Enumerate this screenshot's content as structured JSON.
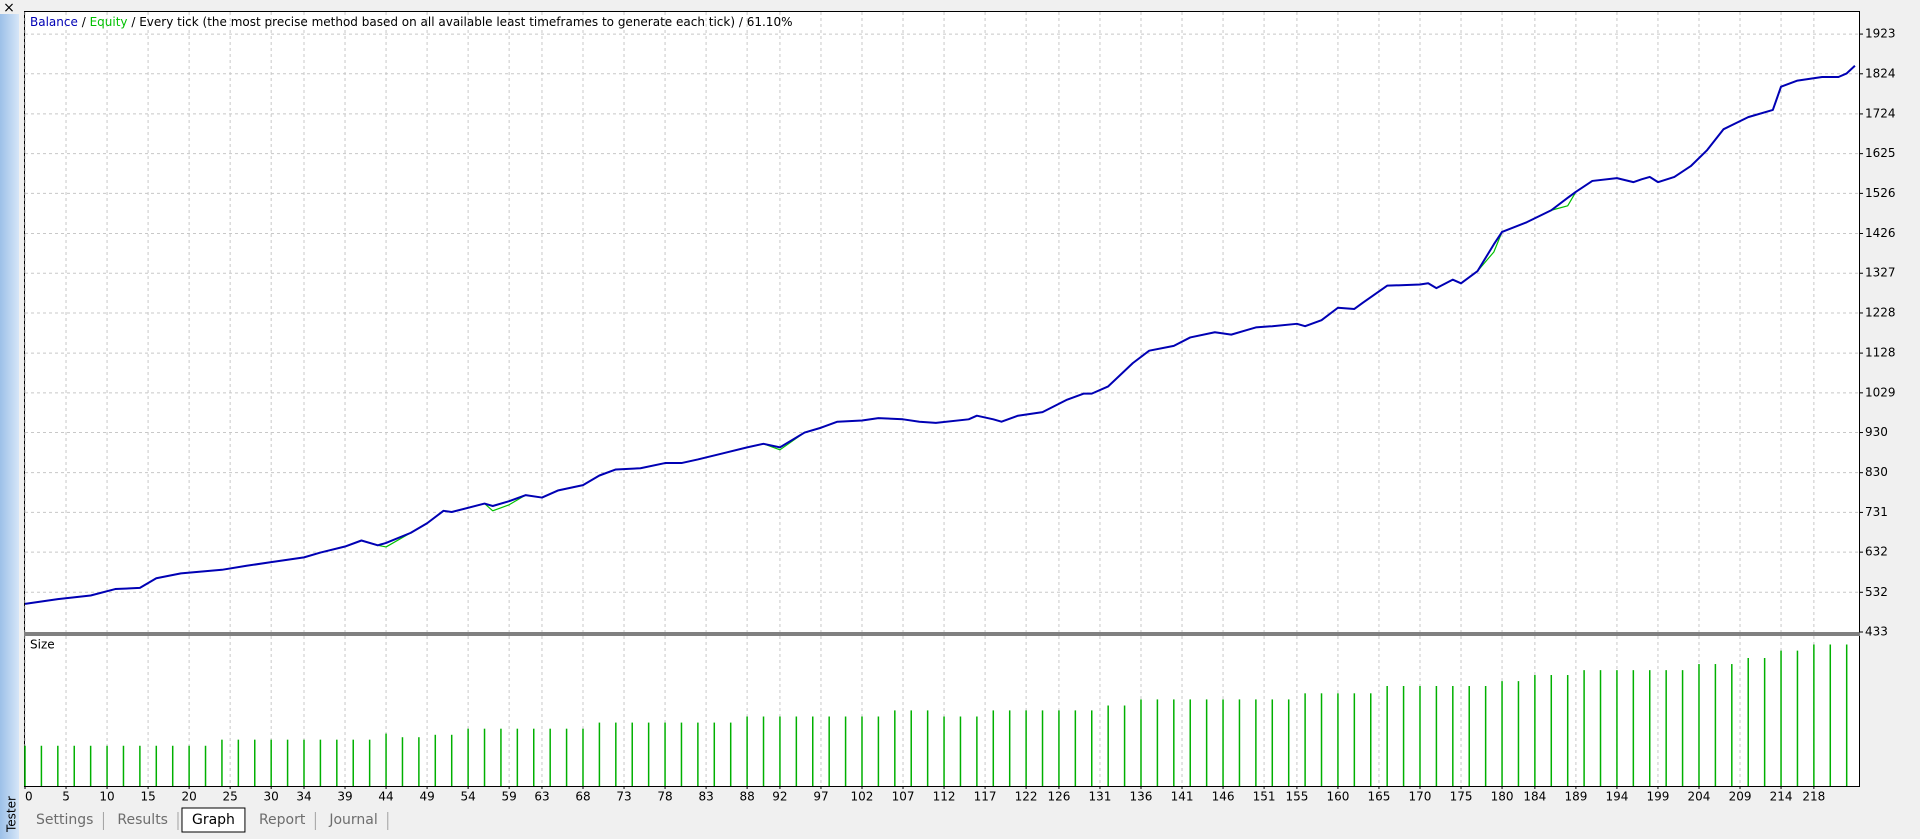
{
  "window": {
    "close": "×",
    "side_label": "Tester",
    "tabs": [
      "Settings",
      "Results",
      "Graph",
      "Report",
      "Journal"
    ],
    "active_tab": 2
  },
  "chart_data": [
    {
      "type": "line",
      "separator": "/",
      "subtitle": "Every tick (the most precise method based on all available least timeframes to generate each tick)",
      "quality": "61.10%",
      "x": [
        0,
        4,
        8,
        11,
        14,
        16,
        19,
        24,
        27,
        30,
        34,
        36,
        39,
        41,
        43,
        44,
        47,
        49,
        51,
        52,
        56,
        57,
        59,
        61,
        63,
        65,
        68,
        70,
        72,
        75,
        78,
        80,
        82,
        85,
        88,
        90,
        92,
        95,
        97,
        99,
        102,
        104,
        107,
        109,
        111,
        115,
        116,
        118,
        119,
        121,
        124,
        127,
        129,
        130,
        132,
        135,
        137,
        140,
        142,
        145,
        147,
        149,
        150,
        152,
        155,
        156,
        158,
        160,
        162,
        163,
        166,
        170,
        171,
        172,
        174,
        175,
        177,
        179,
        180,
        183,
        186,
        188,
        189,
        191,
        194,
        196,
        197,
        198,
        199,
        201,
        203,
        205,
        207,
        210,
        213,
        214,
        216,
        219,
        221,
        222,
        223
      ],
      "series": [
        {
          "name": "Balance",
          "color": "#0000b4",
          "values": [
            503,
            515,
            524,
            540,
            543,
            567,
            579,
            588,
            598,
            607,
            619,
            631,
            646,
            661,
            649,
            655,
            680,
            704,
            735,
            732,
            753,
            747,
            759,
            774,
            768,
            786,
            799,
            823,
            838,
            841,
            854,
            854,
            863,
            878,
            893,
            902,
            893,
            930,
            942,
            957,
            960,
            966,
            963,
            957,
            954,
            963,
            972,
            963,
            957,
            972,
            981,
            1012,
            1027,
            1027,
            1045,
            1103,
            1134,
            1146,
            1167,
            1180,
            1174,
            1186,
            1192,
            1195,
            1201,
            1195,
            1210,
            1241,
            1238,
            1253,
            1296,
            1299,
            1302,
            1290,
            1311,
            1302,
            1332,
            1399,
            1430,
            1454,
            1484,
            1515,
            1530,
            1557,
            1564,
            1554,
            1561,
            1567,
            1554,
            1567,
            1594,
            1634,
            1686,
            1716,
            1734,
            1792,
            1807,
            1816,
            1816,
            1825,
            1844
          ]
        },
        {
          "name": "Equity",
          "color": "#00c000",
          "values": [
            503,
            515,
            524,
            540,
            543,
            567,
            579,
            588,
            598,
            607,
            619,
            631,
            646,
            661,
            649,
            645,
            680,
            704,
            735,
            732,
            753,
            735,
            750,
            774,
            768,
            786,
            799,
            823,
            838,
            841,
            854,
            854,
            863,
            878,
            893,
            902,
            887,
            930,
            942,
            957,
            960,
            966,
            963,
            957,
            954,
            963,
            972,
            963,
            957,
            972,
            981,
            1012,
            1027,
            1027,
            1045,
            1103,
            1134,
            1146,
            1167,
            1180,
            1174,
            1186,
            1192,
            1195,
            1201,
            1195,
            1210,
            1241,
            1238,
            1253,
            1296,
            1299,
            1302,
            1290,
            1311,
            1302,
            1332,
            1380,
            1430,
            1454,
            1484,
            1495,
            1530,
            1557,
            1564,
            1554,
            1561,
            1567,
            1554,
            1567,
            1594,
            1634,
            1686,
            1716,
            1734,
            1792,
            1807,
            1816,
            1816,
            1825,
            1844
          ]
        }
      ],
      "xlim": [
        0,
        223.5
      ],
      "ylim": [
        433,
        1978
      ],
      "yticks": [
        433,
        532,
        632,
        731,
        830,
        930,
        1029,
        1128,
        1228,
        1327,
        1426,
        1526,
        1625,
        1724,
        1824,
        1923
      ],
      "grid": true
    },
    {
      "type": "bar",
      "title": "Size",
      "color": "#00b000",
      "x": [
        0,
        2,
        4,
        6,
        8,
        10,
        12,
        14,
        16,
        18,
        20,
        22,
        24,
        26,
        28,
        30,
        32,
        34,
        36,
        38,
        40,
        42,
        44,
        46,
        48,
        50,
        52,
        54,
        56,
        58,
        60,
        62,
        64,
        66,
        68,
        70,
        72,
        74,
        76,
        78,
        80,
        82,
        84,
        86,
        88,
        90,
        92,
        94,
        96,
        98,
        100,
        102,
        104,
        106,
        108,
        110,
        112,
        114,
        116,
        118,
        120,
        122,
        124,
        126,
        128,
        130,
        132,
        134,
        136,
        138,
        140,
        142,
        144,
        146,
        148,
        150,
        152,
        154,
        156,
        158,
        160,
        162,
        164,
        166,
        168,
        170,
        172,
        174,
        176,
        178,
        180,
        182,
        184,
        186,
        188,
        190,
        192,
        194,
        196,
        198,
        200,
        202,
        204,
        206,
        208,
        210,
        212,
        214,
        216,
        218,
        220,
        222
      ],
      "values": [
        0.33,
        0.33,
        0.33,
        0.33,
        0.33,
        0.33,
        0.33,
        0.33,
        0.33,
        0.33,
        0.33,
        0.33,
        0.38,
        0.38,
        0.38,
        0.38,
        0.38,
        0.38,
        0.38,
        0.38,
        0.38,
        0.38,
        0.43,
        0.4,
        0.4,
        0.42,
        0.42,
        0.47,
        0.47,
        0.47,
        0.47,
        0.47,
        0.47,
        0.47,
        0.47,
        0.52,
        0.52,
        0.52,
        0.52,
        0.52,
        0.52,
        0.52,
        0.52,
        0.52,
        0.57,
        0.57,
        0.57,
        0.57,
        0.57,
        0.57,
        0.57,
        0.57,
        0.57,
        0.62,
        0.62,
        0.62,
        0.57,
        0.57,
        0.57,
        0.62,
        0.62,
        0.62,
        0.62,
        0.62,
        0.62,
        0.62,
        0.66,
        0.66,
        0.71,
        0.71,
        0.71,
        0.71,
        0.71,
        0.71,
        0.71,
        0.71,
        0.71,
        0.71,
        0.76,
        0.76,
        0.76,
        0.76,
        0.76,
        0.82,
        0.82,
        0.82,
        0.82,
        0.82,
        0.82,
        0.82,
        0.86,
        0.86,
        0.91,
        0.91,
        0.91,
        0.95,
        0.95,
        0.95,
        0.95,
        0.95,
        0.95,
        0.95,
        1.0,
        1.0,
        1.0,
        1.05,
        1.05,
        1.11,
        1.11,
        1.16,
        1.16,
        1.16
      ],
      "xlim": [
        0,
        223.5
      ],
      "ylim": [
        0,
        1.23
      ],
      "xticks": [
        0,
        5,
        10,
        15,
        20,
        25,
        30,
        34,
        39,
        44,
        49,
        54,
        59,
        63,
        68,
        73,
        78,
        83,
        88,
        92,
        97,
        102,
        107,
        112,
        117,
        122,
        126,
        131,
        136,
        141,
        146,
        151,
        155,
        160,
        165,
        170,
        175,
        180,
        184,
        189,
        194,
        199,
        204,
        209,
        214,
        218
      ],
      "grid": true
    }
  ]
}
